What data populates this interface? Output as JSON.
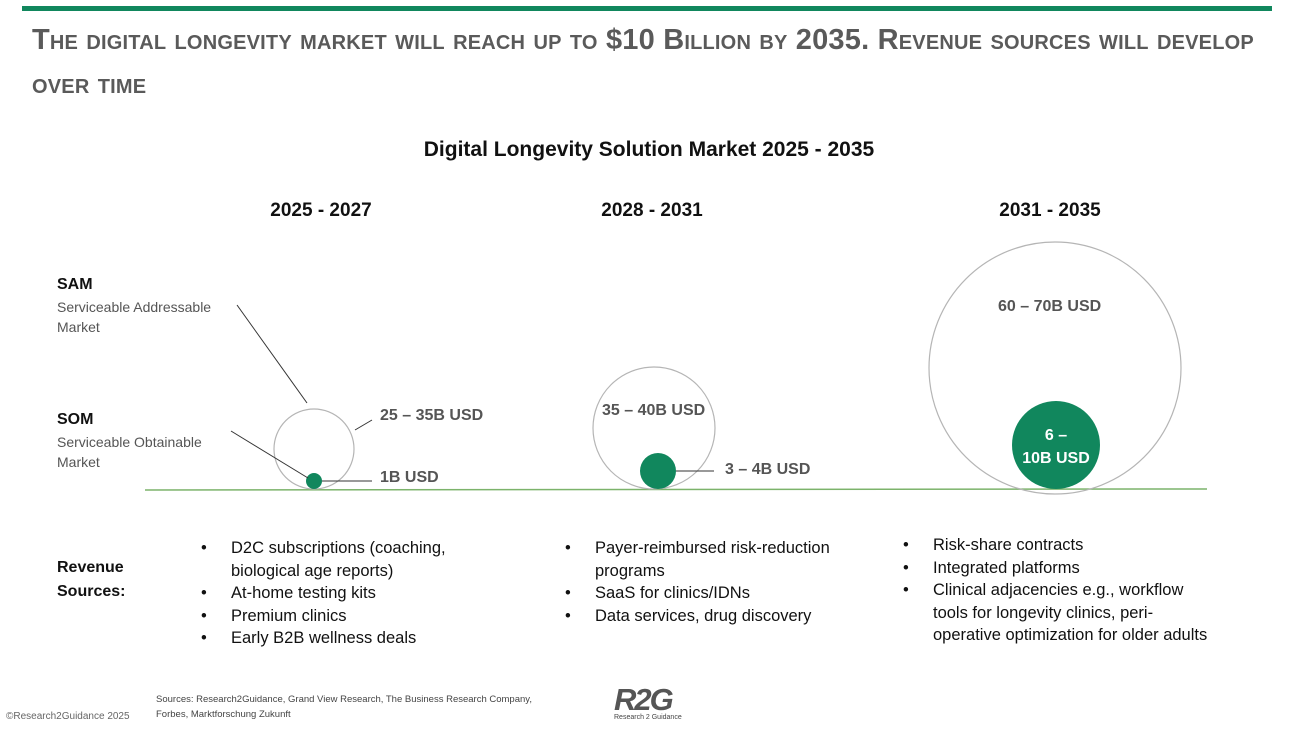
{
  "header": {
    "title": "The digital longevity market will reach up to $10 Billion by 2035. Revenue sources will develop over time"
  },
  "chart": {
    "title": "Digital Longevity Solution Market 2025 - 2035",
    "periods": [
      "2025 - 2027",
      "2028 - 2031",
      "2031 - 2035"
    ],
    "segments": {
      "sam": {
        "label": "SAM",
        "desc": "Serviceable Addressable Market"
      },
      "som": {
        "label": "SOM",
        "desc": "Serviceable Obtainable Market"
      }
    },
    "values": {
      "p1_sam": "25 – 35B USD",
      "p1_som": "1B USD",
      "p2_sam": "35 – 40B USD",
      "p2_som": "3 – 4B USD",
      "p3_sam": "60 – 70B USD",
      "p3_som_line1": "6 –",
      "p3_som_line2": "10B USD"
    },
    "colors": {
      "accent": "#11875d",
      "circle_outline": "#b5b5b5",
      "baseline": "#7cb36b"
    }
  },
  "revenue": {
    "label_line1": "Revenue",
    "label_line2": "Sources:",
    "p1": [
      "D2C subscriptions (coaching, biological age reports)",
      "At-home testing kits",
      "Premium clinics",
      "Early B2B wellness deals"
    ],
    "p2": [
      "Payer-reimbursed risk-reduction programs",
      "SaaS for clinics/IDNs",
      "Data services, drug discovery"
    ],
    "p3": [
      "Risk-share contracts",
      "Integrated platforms",
      "Clinical adjacencies e.g.,  workflow tools for longevity clinics, peri-operative optimization for older adults"
    ]
  },
  "footer": {
    "sources_line1": "Sources: Research2Guidance, Grand View Research, The Business Research Company,",
    "sources_line2": "Forbes, Marktforschung Zukunft",
    "copyright": "©Research2Guidance 2025",
    "logo_text": "R2G",
    "logo_sub": "Research 2 Guidance"
  }
}
